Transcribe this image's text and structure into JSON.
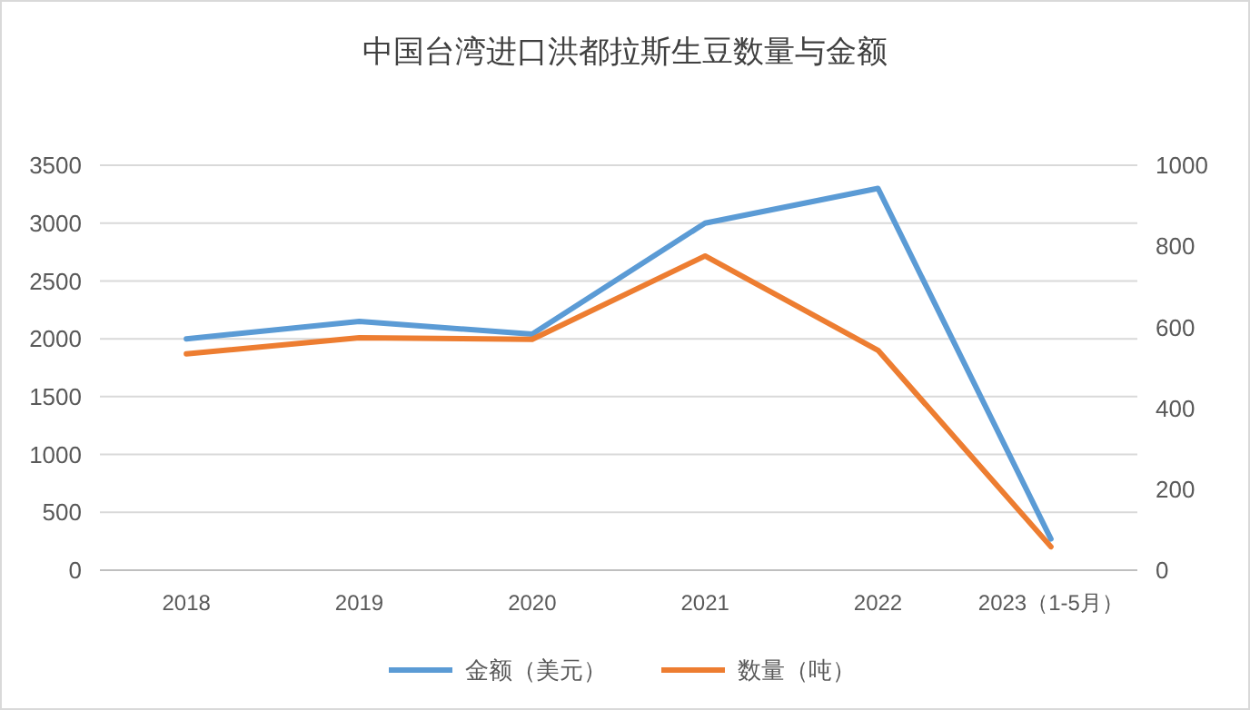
{
  "chart_data": {
    "type": "line",
    "title": "中国台湾进口洪都拉斯生豆数量与金额",
    "categories": [
      "2018",
      "2019",
      "2020",
      "2021",
      "2022",
      "2023（1-5月）"
    ],
    "series": [
      {
        "name": "金额（美元）",
        "color": "#5b9bd5",
        "values": [
          2000,
          2150,
          2040,
          3000,
          3300,
          270
        ]
      },
      {
        "name": "数量（吨）",
        "color": "#ed7d31",
        "values": [
          534,
          574,
          570,
          776,
          543,
          58
        ],
        "axis": "y2"
      }
    ],
    "ylim": [
      0,
      3500
    ],
    "yticks": [
      0,
      500,
      1000,
      1500,
      2000,
      2500,
      3000,
      3500
    ],
    "y2lim": [
      0,
      1000
    ],
    "y2ticks": [
      0,
      200,
      400,
      600,
      800,
      1000
    ],
    "grid": "y",
    "legend": "bottom",
    "marker": "none",
    "line_style": "solid"
  }
}
